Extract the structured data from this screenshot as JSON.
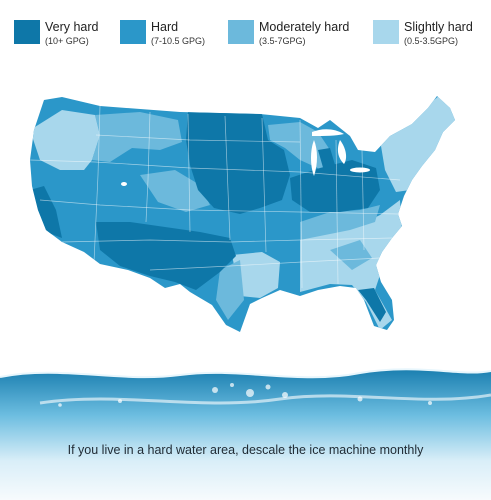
{
  "legend": [
    {
      "label": "Very hard",
      "range": "(10+ GPG)",
      "color": "#0e77a8"
    },
    {
      "label": "Hard",
      "range": "(7-10.5 GPG)",
      "color": "#2b97c9"
    },
    {
      "label": "Moderately hard",
      "range": "(3.5-7GPG)",
      "color": "#6cb9dc"
    },
    {
      "label": "Slightly hard",
      "range": "(0.5-3.5GPG)",
      "color": "#a8d7ec"
    }
  ],
  "caption": "If you live in a hard water area, descale the ice machine monthly"
}
